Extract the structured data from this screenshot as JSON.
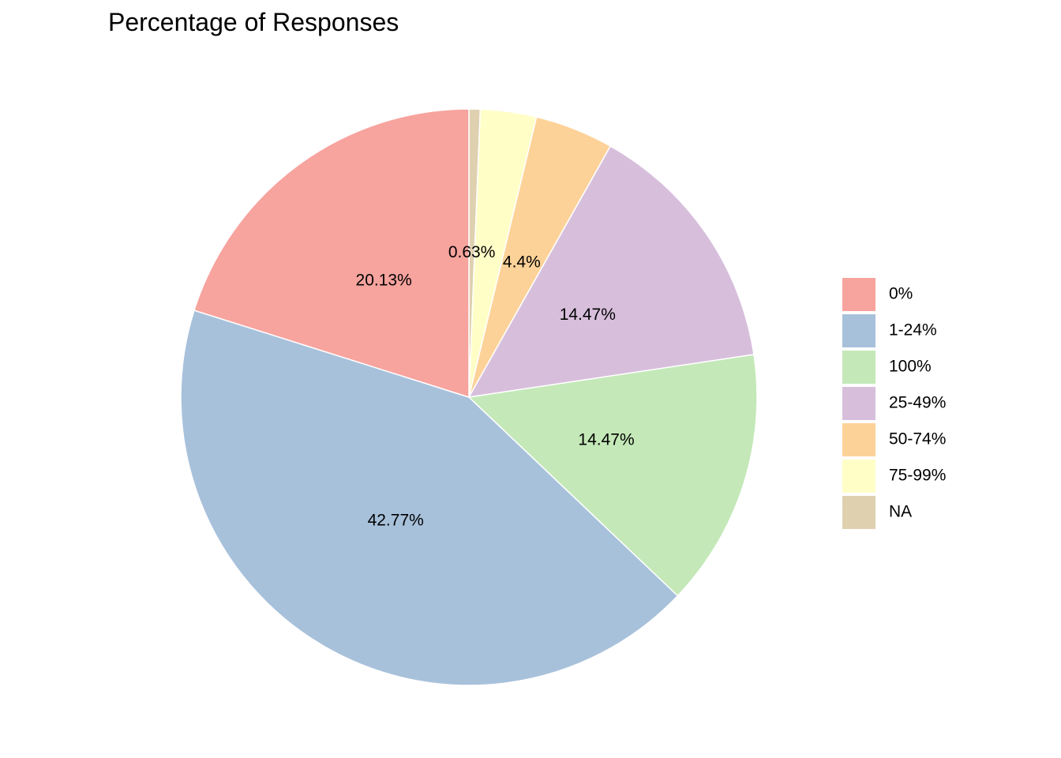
{
  "chart_data": {
    "type": "pie",
    "title": "Percentage of Responses",
    "legend_position": "right",
    "slices": [
      {
        "category": "0%",
        "value": 20.13,
        "label": "20.13%",
        "color": "#F7A39E"
      },
      {
        "category": "1-24%",
        "value": 42.77,
        "label": "42.77%",
        "color": "#A8C1DB"
      },
      {
        "category": "100%",
        "value": 14.47,
        "label": "14.47%",
        "color": "#C4E8B8"
      },
      {
        "category": "25-49%",
        "value": 14.47,
        "label": "14.47%",
        "color": "#D7BFDC"
      },
      {
        "category": "50-74%",
        "value": 4.4,
        "label": "4.4%",
        "color": "#FDD298"
      },
      {
        "category": "75-99%",
        "value": 3.14,
        "label": "",
        "color": "#FFFEC7"
      },
      {
        "category": "NA",
        "value": 0.63,
        "label": "0.63%",
        "color": "#DFD1B0"
      }
    ],
    "drawing_order_clockwise_from_top": [
      "NA",
      "75-99%",
      "50-74%",
      "25-49%",
      "100%",
      "1-24%",
      "0%"
    ]
  }
}
